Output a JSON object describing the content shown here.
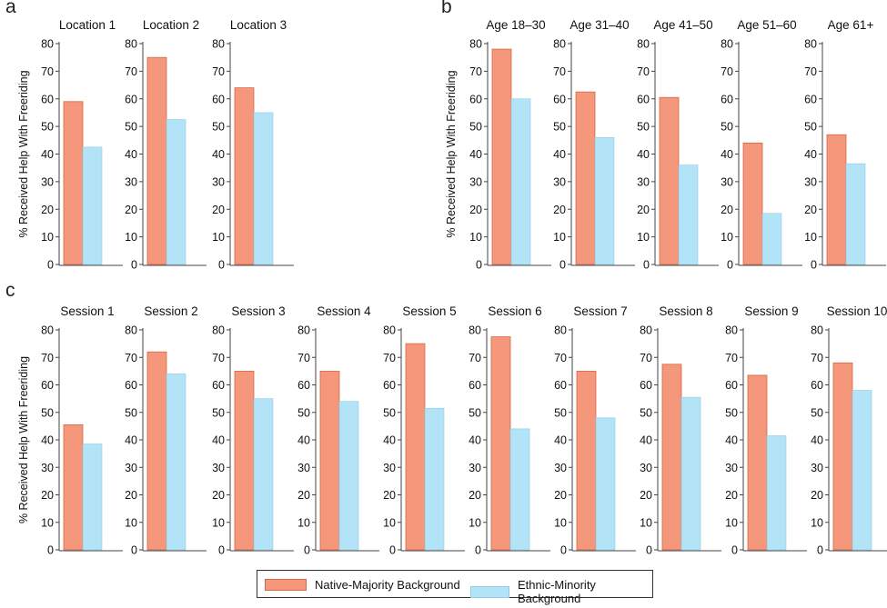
{
  "colors": {
    "native": "#f4977a",
    "minority": "#b3e3f7",
    "native_stroke": "#d7674a",
    "minority_stroke": "#8fcbe3"
  },
  "panel_labels": {
    "a": "a",
    "b": "b",
    "c": "c"
  },
  "legend": {
    "native": "Native-Majority Background",
    "minority": "Ethnic-Minority Background"
  },
  "chart_data": [
    {
      "type": "bar",
      "panel": "a",
      "ylabel": "% Received Help With Freeriding",
      "ylim": [
        0,
        80
      ],
      "yticks": [
        0,
        10,
        20,
        30,
        40,
        50,
        60,
        70,
        80
      ],
      "facets": [
        {
          "title": "Location 1",
          "native": 59,
          "minority": 42.5
        },
        {
          "title": "Location 2",
          "native": 75,
          "minority": 52.5
        },
        {
          "title": "Location 3",
          "native": 64,
          "minority": 55
        }
      ]
    },
    {
      "type": "bar",
      "panel": "b",
      "ylabel": "% Received Help With Freeriding",
      "ylim": [
        0,
        80
      ],
      "yticks": [
        0,
        10,
        20,
        30,
        40,
        50,
        60,
        70,
        80
      ],
      "facets": [
        {
          "title": "Age 18–30",
          "native": 78,
          "minority": 60
        },
        {
          "title": "Age 31–40",
          "native": 62.5,
          "minority": 46
        },
        {
          "title": "Age 41–50",
          "native": 60.5,
          "minority": 36
        },
        {
          "title": "Age 51–60",
          "native": 44,
          "minority": 18.5
        },
        {
          "title": "Age 61+",
          "native": 47,
          "minority": 36.5
        }
      ]
    },
    {
      "type": "bar",
      "panel": "c",
      "ylabel": "% Received Help With Freeriding",
      "ylim": [
        0,
        80
      ],
      "yticks": [
        0,
        10,
        20,
        30,
        40,
        50,
        60,
        70,
        80
      ],
      "facets": [
        {
          "title": "Session 1",
          "native": 45.5,
          "minority": 38.5
        },
        {
          "title": "Session 2",
          "native": 72,
          "minority": 64
        },
        {
          "title": "Session 3",
          "native": 65,
          "minority": 55
        },
        {
          "title": "Session 4",
          "native": 65,
          "minority": 54
        },
        {
          "title": "Session 5",
          "native": 75,
          "minority": 51.5
        },
        {
          "title": "Session 6",
          "native": 77.5,
          "minority": 44
        },
        {
          "title": "Session 7",
          "native": 65,
          "minority": 48
        },
        {
          "title": "Session 8",
          "native": 67.5,
          "minority": 55.5
        },
        {
          "title": "Session 9",
          "native": 63.5,
          "minority": 41.5
        },
        {
          "title": "Session 10",
          "native": 68,
          "minority": 58
        }
      ]
    }
  ]
}
